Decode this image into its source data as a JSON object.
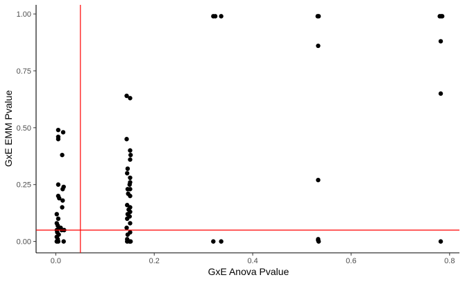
{
  "chart_data": {
    "type": "scatter",
    "xlabel": "GxE Anova Pvalue",
    "ylabel": "GxE EMM Pvalue",
    "xlim": [
      -0.04,
      0.82
    ],
    "ylim": [
      -0.05,
      1.04
    ],
    "x_ticks": [
      {
        "value": 0.0,
        "label": "0.0"
      },
      {
        "value": 0.2,
        "label": "0.2"
      },
      {
        "value": 0.4,
        "label": "0.4"
      },
      {
        "value": 0.6,
        "label": "0.6"
      },
      {
        "value": 0.8,
        "label": "0.8"
      }
    ],
    "y_ticks": [
      {
        "value": 0.0,
        "label": "0.00"
      },
      {
        "value": 0.25,
        "label": "0.25"
      },
      {
        "value": 0.5,
        "label": "0.50"
      },
      {
        "value": 0.75,
        "label": "0.75"
      },
      {
        "value": 1.0,
        "label": "1.00"
      }
    ],
    "grid": false,
    "reference_lines": [
      {
        "orientation": "vertical",
        "value": 0.05,
        "color": "#ff0000"
      },
      {
        "orientation": "horizontal",
        "value": 0.05,
        "color": "#ff0000"
      }
    ],
    "point_color": "#000000",
    "series": [
      {
        "points": [
          [
            0.005,
            0.49
          ],
          [
            0.005,
            0.46
          ],
          [
            0.005,
            0.45
          ],
          [
            0.015,
            0.48
          ],
          [
            0.013,
            0.38
          ],
          [
            0.005,
            0.25
          ],
          [
            0.016,
            0.24
          ],
          [
            0.014,
            0.23
          ],
          [
            0.005,
            0.2
          ],
          [
            0.007,
            0.19
          ],
          [
            0.014,
            0.18
          ],
          [
            0.013,
            0.15
          ],
          [
            0.002,
            0.12
          ],
          [
            0.005,
            0.1
          ],
          [
            0.002,
            0.08
          ],
          [
            0.004,
            0.07
          ],
          [
            0.006,
            0.06
          ],
          [
            0.01,
            0.06
          ],
          [
            0.002,
            0.05
          ],
          [
            0.012,
            0.05
          ],
          [
            0.017,
            0.05
          ],
          [
            0.003,
            0.04
          ],
          [
            0.006,
            0.03
          ],
          [
            0.002,
            0.02
          ],
          [
            0.004,
            0.01
          ],
          [
            0.002,
            0.0
          ],
          [
            0.005,
            0.0
          ],
          [
            0.016,
            0.0
          ],
          [
            0.144,
            0.64
          ],
          [
            0.151,
            0.63
          ],
          [
            0.144,
            0.45
          ],
          [
            0.151,
            0.4
          ],
          [
            0.152,
            0.38
          ],
          [
            0.151,
            0.36
          ],
          [
            0.146,
            0.32
          ],
          [
            0.145,
            0.3
          ],
          [
            0.151,
            0.28
          ],
          [
            0.151,
            0.26
          ],
          [
            0.15,
            0.25
          ],
          [
            0.146,
            0.23
          ],
          [
            0.151,
            0.23
          ],
          [
            0.147,
            0.21
          ],
          [
            0.151,
            0.2
          ],
          [
            0.145,
            0.16
          ],
          [
            0.151,
            0.15
          ],
          [
            0.148,
            0.14
          ],
          [
            0.151,
            0.13
          ],
          [
            0.146,
            0.12
          ],
          [
            0.15,
            0.11
          ],
          [
            0.145,
            0.1
          ],
          [
            0.151,
            0.08
          ],
          [
            0.144,
            0.06
          ],
          [
            0.151,
            0.04
          ],
          [
            0.146,
            0.03
          ],
          [
            0.145,
            0.01
          ],
          [
            0.15,
            0.0
          ],
          [
            0.145,
            0.0
          ],
          [
            0.152,
            0.0
          ],
          [
            0.32,
            0.99
          ],
          [
            0.324,
            0.99
          ],
          [
            0.336,
            0.99
          ],
          [
            0.32,
            0.0
          ],
          [
            0.336,
            0.0
          ],
          [
            0.532,
            0.99
          ],
          [
            0.534,
            0.99
          ],
          [
            0.533,
            0.86
          ],
          [
            0.533,
            0.27
          ],
          [
            0.533,
            0.01
          ],
          [
            0.533,
            0.005
          ],
          [
            0.534,
            0.0
          ],
          [
            0.78,
            0.99
          ],
          [
            0.783,
            0.99
          ],
          [
            0.785,
            0.99
          ],
          [
            0.782,
            0.88
          ],
          [
            0.782,
            0.65
          ],
          [
            0.782,
            0.0
          ]
        ]
      }
    ]
  }
}
